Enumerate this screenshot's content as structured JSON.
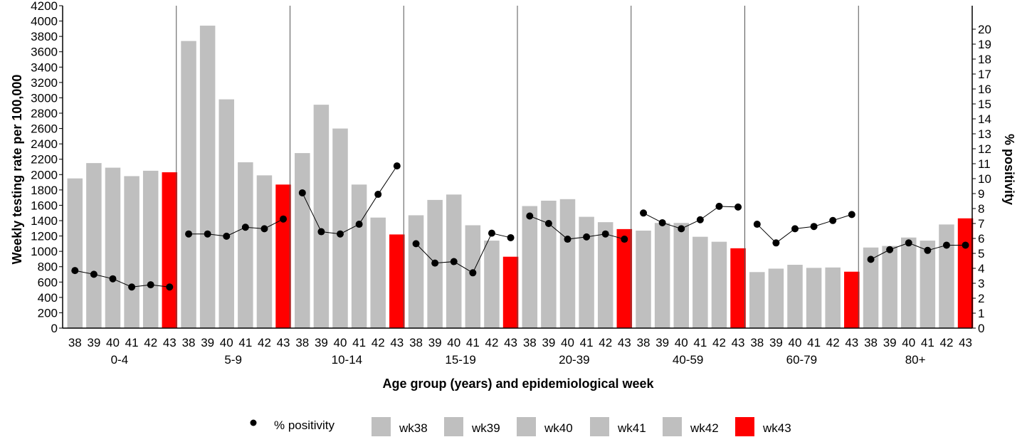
{
  "chart_data": {
    "type": "bar",
    "xlabel": "Age group (years) and epidemiological week",
    "ylabel": "Weekly testing rate per 100,000",
    "y2label": "% positivity",
    "ylim": [
      0,
      4200
    ],
    "y2lim": [
      0,
      21
    ],
    "yticks": [
      0,
      200,
      400,
      600,
      800,
      1000,
      1200,
      1400,
      1600,
      1800,
      2000,
      2200,
      2400,
      2600,
      2800,
      3000,
      3200,
      3400,
      3600,
      3800,
      4000,
      4200
    ],
    "y2ticks": [
      0,
      1,
      2,
      3,
      4,
      5,
      6,
      7,
      8,
      9,
      10,
      11,
      12,
      13,
      14,
      15,
      16,
      17,
      18,
      19,
      20
    ],
    "groups": [
      "0-4",
      "5-9",
      "10-14",
      "15-19",
      "20-39",
      "40-59",
      "60-79",
      "80+"
    ],
    "weeks": [
      "38",
      "39",
      "40",
      "41",
      "42",
      "43"
    ],
    "bar_series": [
      {
        "name": "wk38",
        "color": "#bfbfbf",
        "values": [
          1950,
          3740,
          2280,
          1470,
          1590,
          1270,
          730,
          1050
        ]
      },
      {
        "name": "wk39",
        "color": "#bfbfbf",
        "values": [
          2150,
          3940,
          2910,
          1670,
          1660,
          1370,
          775,
          1070
        ]
      },
      {
        "name": "wk40",
        "color": "#bfbfbf",
        "values": [
          2090,
          2980,
          2600,
          1740,
          1680,
          1370,
          825,
          1180
        ]
      },
      {
        "name": "wk41",
        "color": "#bfbfbf",
        "values": [
          1980,
          2160,
          1870,
          1340,
          1450,
          1190,
          785,
          1140
        ]
      },
      {
        "name": "wk42",
        "color": "#bfbfbf",
        "values": [
          2050,
          1990,
          1440,
          1140,
          1380,
          1125,
          790,
          1350
        ]
      },
      {
        "name": "wk43",
        "color": "#ff0000",
        "values": [
          2030,
          1870,
          1220,
          930,
          1290,
          1040,
          735,
          1430
        ]
      }
    ],
    "line_series": {
      "name": "% positivity",
      "color": "#000000",
      "values": [
        [
          3.85,
          3.6,
          3.3,
          2.75,
          2.9,
          2.75
        ],
        [
          6.3,
          6.3,
          6.15,
          6.75,
          6.65,
          7.3
        ],
        [
          9.05,
          6.45,
          6.3,
          6.95,
          8.95,
          10.85
        ],
        [
          5.65,
          4.35,
          4.45,
          3.7,
          6.35,
          6.05
        ],
        [
          7.5,
          7.0,
          5.95,
          6.1,
          6.3,
          5.95
        ],
        [
          7.7,
          7.05,
          6.65,
          7.25,
          8.15,
          8.1
        ],
        [
          6.95,
          5.7,
          6.65,
          6.8,
          7.2,
          7.6
        ],
        [
          4.6,
          5.25,
          5.7,
          5.2,
          5.55,
          5.55
        ]
      ]
    },
    "legend": {
      "position": "bottom",
      "items": [
        "% positivity",
        "wk38",
        "wk39",
        "wk40",
        "wk41",
        "wk42",
        "wk43"
      ]
    },
    "grid": false
  }
}
